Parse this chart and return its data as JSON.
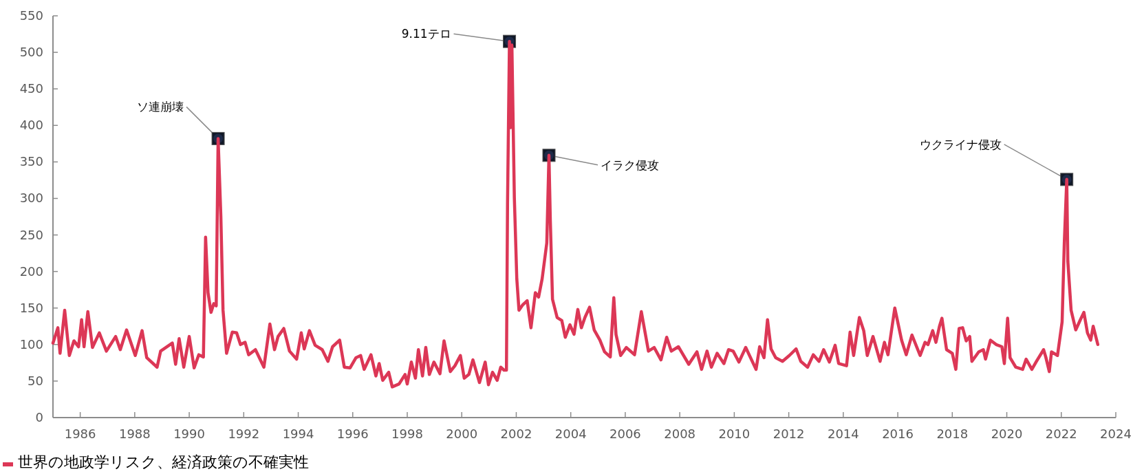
{
  "chart_data": {
    "type": "line",
    "xlim": [
      1985,
      2024
    ],
    "ylim": [
      0,
      550
    ],
    "xticks": [
      1986,
      1988,
      1990,
      1992,
      1994,
      1996,
      1998,
      2000,
      2002,
      2004,
      2006,
      2008,
      2010,
      2012,
      2014,
      2016,
      2018,
      2020,
      2022,
      2024
    ],
    "yticks": [
      0,
      50,
      100,
      150,
      200,
      250,
      300,
      350,
      400,
      450,
      500,
      550
    ],
    "legend": "bottom left",
    "annotations": [
      {
        "text": "ソ連崩壊",
        "x": 1991.06,
        "y": 382
      },
      {
        "text": "9.11テロ",
        "x": 2001.75,
        "y": 515
      },
      {
        "text": "イラク侵攻",
        "x": 2003.2,
        "y": 359
      },
      {
        "text": "ウクライナ侵攻",
        "x": 2022.2,
        "y": 326
      }
    ],
    "series": [
      {
        "name": "世界の地政学リスク、経済政策の不確実性",
        "color": "#dc3756",
        "x": [
          1985.0,
          1985.18,
          1985.26,
          1985.43,
          1985.6,
          1985.77,
          1985.94,
          1986.05,
          1986.14,
          1986.28,
          1986.45,
          1986.7,
          1986.96,
          1987.3,
          1987.47,
          1987.7,
          1988.02,
          1988.27,
          1988.44,
          1988.82,
          1988.95,
          1989.38,
          1989.5,
          1989.63,
          1989.8,
          1990.0,
          1990.18,
          1990.35,
          1990.52,
          1990.6,
          1990.69,
          1990.8,
          1990.9,
          1990.99,
          1991.06,
          1991.16,
          1991.24,
          1991.37,
          1991.58,
          1991.74,
          1991.88,
          1992.05,
          1992.18,
          1992.43,
          1992.74,
          1992.96,
          1993.13,
          1993.26,
          1993.47,
          1993.68,
          1993.94,
          1994.11,
          1994.22,
          1994.41,
          1994.62,
          1994.88,
          1995.09,
          1995.26,
          1995.52,
          1995.69,
          1995.9,
          1996.12,
          1996.29,
          1996.42,
          1996.67,
          1996.85,
          1996.97,
          1997.1,
          1997.32,
          1997.45,
          1997.7,
          1997.92,
          1998.0,
          1998.15,
          1998.3,
          1998.41,
          1998.56,
          1998.68,
          1998.81,
          1998.98,
          1999.2,
          1999.35,
          1999.58,
          1999.75,
          1999.95,
          2000.09,
          2000.26,
          2000.41,
          2000.65,
          2000.86,
          2000.98,
          2001.13,
          2001.3,
          2001.43,
          2001.55,
          2001.64,
          2001.68,
          2001.75,
          2001.79,
          2001.84,
          2001.93,
          2002.02,
          2002.1,
          2002.23,
          2002.4,
          2002.54,
          2002.7,
          2002.82,
          2002.95,
          2003.12,
          2003.2,
          2003.25,
          2003.33,
          2003.5,
          2003.67,
          2003.8,
          2003.97,
          2004.12,
          2004.26,
          2004.39,
          2004.52,
          2004.69,
          2004.86,
          2005.07,
          2005.24,
          2005.45,
          2005.58,
          2005.66,
          2005.83,
          2006.04,
          2006.34,
          2006.59,
          2006.85,
          2007.06,
          2007.31,
          2007.52,
          2007.69,
          2007.95,
          2008.33,
          2008.63,
          2008.8,
          2009.0,
          2009.16,
          2009.37,
          2009.62,
          2009.79,
          2009.96,
          2010.17,
          2010.42,
          2010.8,
          2010.93,
          2011.09,
          2011.22,
          2011.35,
          2011.52,
          2011.77,
          2012.02,
          2012.27,
          2012.44,
          2012.69,
          2012.9,
          2013.11,
          2013.28,
          2013.49,
          2013.7,
          2013.83,
          2014.12,
          2014.25,
          2014.38,
          2014.59,
          2014.75,
          2014.88,
          2015.09,
          2015.35,
          2015.51,
          2015.64,
          2015.89,
          2016.14,
          2016.31,
          2016.52,
          2016.82,
          2017.0,
          2017.11,
          2017.28,
          2017.4,
          2017.53,
          2017.62,
          2017.79,
          2018.0,
          2018.13,
          2018.25,
          2018.38,
          2018.51,
          2018.64,
          2018.72,
          2018.97,
          2019.14,
          2019.22,
          2019.4,
          2019.61,
          2019.82,
          2019.91,
          2020.03,
          2020.12,
          2020.33,
          2020.58,
          2020.71,
          2020.92,
          2021.09,
          2021.35,
          2021.43,
          2021.56,
          2021.64,
          2021.86,
          2022.03,
          2022.11,
          2022.2,
          2022.24,
          2022.36,
          2022.53,
          2022.7,
          2022.83,
          2022.96,
          2023.08,
          2023.17,
          2023.34
        ],
        "values": [
          102,
          123,
          88,
          147,
          85,
          105,
          97,
          134,
          97,
          145,
          96,
          116,
          91,
          111,
          93,
          120,
          85,
          119,
          82,
          69,
          91,
          102,
          73,
          108,
          69,
          111,
          68,
          86,
          83,
          247,
          171,
          144,
          156,
          153,
          382,
          276,
          147,
          88,
          117,
          116,
          100,
          103,
          86,
          93,
          69,
          128,
          93,
          111,
          122,
          91,
          80,
          116,
          94,
          119,
          99,
          93,
          77,
          97,
          106,
          69,
          68,
          82,
          85,
          66,
          86,
          57,
          74,
          51,
          62,
          42,
          46,
          59,
          46,
          76,
          54,
          93,
          57,
          96,
          59,
          76,
          60,
          105,
          63,
          71,
          85,
          54,
          59,
          79,
          48,
          76,
          45,
          62,
          51,
          69,
          65,
          65,
          292,
          515,
          397,
          510,
          301,
          190,
          147,
          154,
          160,
          123,
          171,
          165,
          190,
          239,
          359,
          270,
          162,
          137,
          133,
          110,
          127,
          114,
          148,
          123,
          137,
          151,
          120,
          106,
          90,
          83,
          164,
          114,
          85,
          96,
          86,
          145,
          91,
          96,
          79,
          110,
          91,
          97,
          73,
          90,
          66,
          91,
          69,
          88,
          74,
          93,
          91,
          76,
          96,
          66,
          97,
          82,
          134,
          94,
          82,
          77,
          85,
          94,
          77,
          69,
          86,
          77,
          93,
          76,
          99,
          74,
          71,
          117,
          85,
          137,
          119,
          85,
          111,
          77,
          103,
          86,
          150,
          106,
          86,
          113,
          85,
          103,
          100,
          119,
          103,
          125,
          136,
          93,
          88,
          66,
          122,
          123,
          105,
          111,
          77,
          90,
          93,
          80,
          106,
          100,
          97,
          74,
          136,
          82,
          69,
          66,
          80,
          66,
          77,
          93,
          83,
          63,
          90,
          85,
          131,
          239,
          326,
          214,
          147,
          120,
          134,
          144,
          116,
          106,
          125,
          100
        ]
      }
    ]
  }
}
